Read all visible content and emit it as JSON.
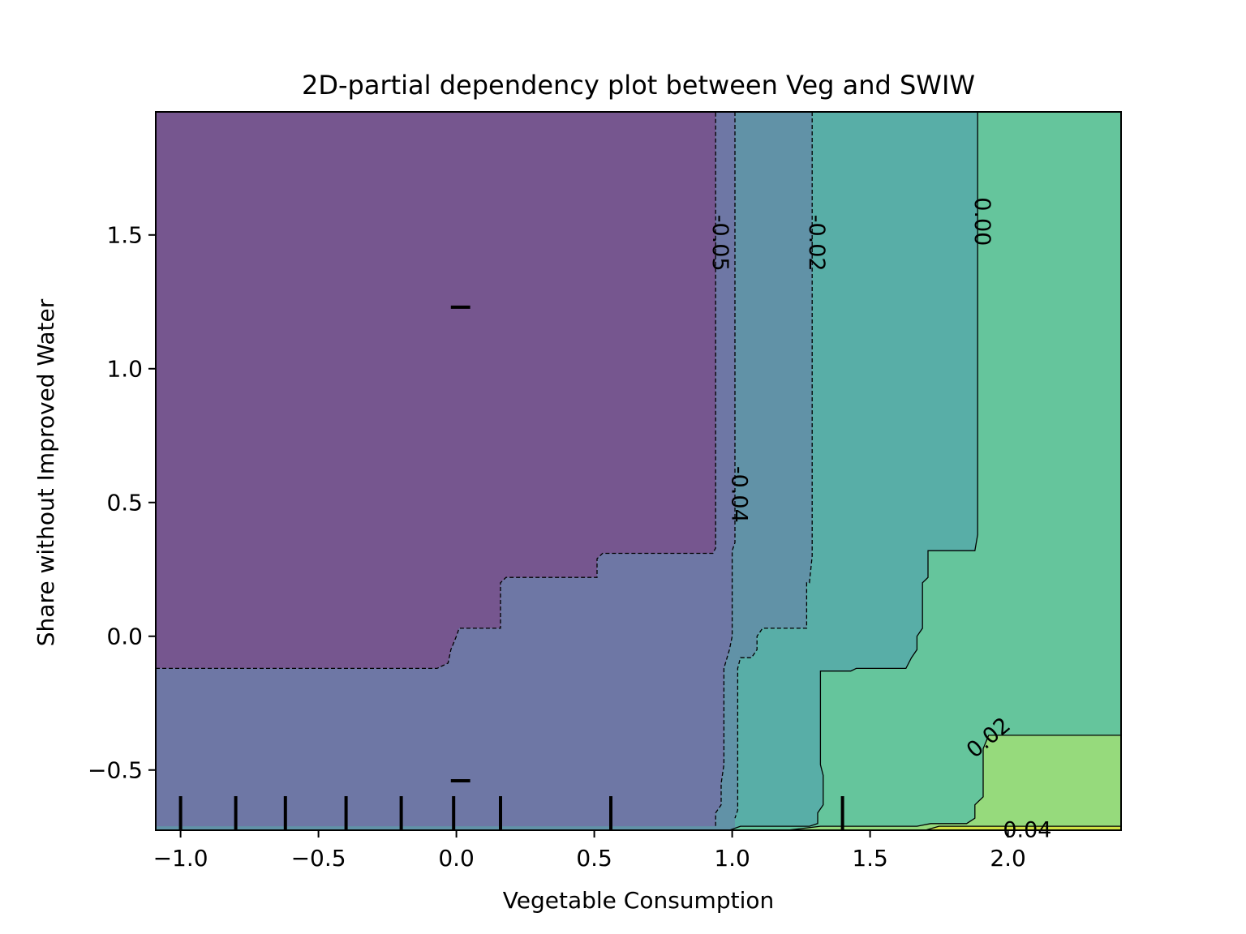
{
  "chart_data": {
    "type": "contour",
    "title": "2D-partial dependency plot between Veg and SWIW",
    "xlabel": "Vegetable Consumption",
    "ylabel": "Share without Improved Water",
    "xlim": [
      -1.09,
      2.41
    ],
    "ylim": [
      -0.725,
      1.96
    ],
    "xticks": [
      {
        "value": -1.0,
        "label": "−1.0"
      },
      {
        "value": -0.5,
        "label": "−0.5"
      },
      {
        "value": 0.0,
        "label": "0.0"
      },
      {
        "value": 0.5,
        "label": "0.5"
      },
      {
        "value": 1.0,
        "label": "1.0"
      },
      {
        "value": 1.5,
        "label": "1.5"
      },
      {
        "value": 2.0,
        "label": "2.0"
      }
    ],
    "yticks": [
      {
        "value": -0.5,
        "label": "−0.5"
      },
      {
        "value": 0.0,
        "label": "0.0"
      },
      {
        "value": 0.5,
        "label": "0.5"
      },
      {
        "value": 1.0,
        "label": "1.0"
      },
      {
        "value": 1.5,
        "label": "1.5"
      }
    ],
    "grid": false,
    "colors": {
      "band_lt_m005": "#76568f",
      "band_m005_m004": "#6e77a5",
      "band_m004_m002": "#6192a7",
      "band_m002_000": "#58aea7",
      "band_000_002": "#65c59c",
      "band_002_004": "#96da7c",
      "band_gt_004": "#d0e245"
    },
    "contour_levels": [
      {
        "label": "-0.05",
        "value": -0.05,
        "dashed": true,
        "points": [
          [
            -1.09,
            -0.12
          ],
          [
            -0.07,
            -0.12
          ],
          [
            -0.03,
            -0.1
          ],
          [
            -0.02,
            -0.05
          ],
          [
            0.0,
            0.0
          ],
          [
            0.01,
            0.03
          ],
          [
            0.16,
            0.03
          ],
          [
            0.16,
            0.2
          ],
          [
            0.18,
            0.22
          ],
          [
            0.51,
            0.22
          ],
          [
            0.51,
            0.29
          ],
          [
            0.53,
            0.31
          ],
          [
            0.93,
            0.31
          ],
          [
            0.94,
            0.33
          ],
          [
            0.94,
            1.96
          ]
        ]
      },
      {
        "label": "-0.04",
        "value": -0.04,
        "dashed": true,
        "points": [
          [
            1.01,
            1.96
          ],
          [
            1.01,
            0.35
          ],
          [
            1.0,
            0.32
          ],
          [
            1.0,
            0.0
          ],
          [
            0.99,
            -0.05
          ],
          [
            0.97,
            -0.12
          ],
          [
            0.97,
            -0.48
          ],
          [
            0.96,
            -0.55
          ],
          [
            0.96,
            -0.63
          ],
          [
            0.94,
            -0.66
          ],
          [
            0.94,
            -0.71
          ]
        ]
      },
      {
        "label": "-0.02",
        "value": -0.02,
        "dashed": true,
        "points": [
          [
            1.29,
            1.96
          ],
          [
            1.29,
            0.3
          ],
          [
            1.28,
            0.2
          ],
          [
            1.27,
            0.2
          ],
          [
            1.27,
            0.03
          ],
          [
            1.11,
            0.03
          ],
          [
            1.09,
            0.0
          ],
          [
            1.09,
            -0.05
          ],
          [
            1.07,
            -0.08
          ],
          [
            1.03,
            -0.08
          ],
          [
            1.02,
            -0.12
          ],
          [
            1.02,
            -0.65
          ],
          [
            1.01,
            -0.68
          ]
        ]
      },
      {
        "label": "0.00",
        "value": 0.0,
        "dashed": false,
        "points": [
          [
            1.89,
            1.96
          ],
          [
            1.89,
            0.38
          ],
          [
            1.88,
            0.32
          ],
          [
            1.71,
            0.32
          ],
          [
            1.71,
            0.22
          ],
          [
            1.69,
            0.2
          ],
          [
            1.69,
            0.03
          ],
          [
            1.67,
            0.0
          ],
          [
            1.67,
            -0.05
          ],
          [
            1.65,
            -0.08
          ],
          [
            1.63,
            -0.12
          ],
          [
            1.45,
            -0.12
          ],
          [
            1.43,
            -0.13
          ],
          [
            1.32,
            -0.13
          ],
          [
            1.32,
            -0.48
          ],
          [
            1.33,
            -0.52
          ],
          [
            1.33,
            -0.63
          ],
          [
            1.31,
            -0.66
          ],
          [
            1.31,
            -0.7
          ],
          [
            1.28,
            -0.71
          ],
          [
            1.03,
            -0.71
          ],
          [
            0.99,
            -0.725
          ]
        ]
      },
      {
        "label": "0.02",
        "value": 0.02,
        "dashed": false,
        "points": [
          [
            2.41,
            -0.37
          ],
          [
            1.93,
            -0.37
          ],
          [
            1.91,
            -0.42
          ],
          [
            1.91,
            -0.6
          ],
          [
            1.88,
            -0.63
          ],
          [
            1.88,
            -0.68
          ],
          [
            1.85,
            -0.7
          ],
          [
            1.72,
            -0.7
          ],
          [
            1.67,
            -0.71
          ],
          [
            1.32,
            -0.71
          ],
          [
            1.2,
            -0.725
          ]
        ]
      },
      {
        "label": "0.04",
        "value": 0.04,
        "dashed": false,
        "points": [
          [
            2.41,
            -0.71
          ],
          [
            1.75,
            -0.71
          ],
          [
            1.7,
            -0.725
          ]
        ]
      }
    ],
    "filled_regions": [
      {
        "band": "band_m004_m002",
        "points": [
          [
            0.94,
            1.96
          ],
          [
            2.41,
            1.96
          ],
          [
            2.41,
            -0.725
          ],
          [
            -1.09,
            -0.725
          ],
          [
            -1.09,
            -0.12
          ],
          [
            -0.07,
            -0.12
          ],
          [
            -0.03,
            -0.1
          ],
          [
            -0.02,
            -0.05
          ],
          [
            0.0,
            0.0
          ],
          [
            0.01,
            0.03
          ],
          [
            0.16,
            0.03
          ],
          [
            0.16,
            0.2
          ],
          [
            0.18,
            0.22
          ],
          [
            0.51,
            0.22
          ],
          [
            0.51,
            0.29
          ],
          [
            0.53,
            0.31
          ],
          [
            0.93,
            0.31
          ],
          [
            0.94,
            0.33
          ]
        ]
      },
      {
        "band": "band_m005_m004",
        "points": [
          [
            -1.09,
            -0.12
          ],
          [
            -0.07,
            -0.12
          ],
          [
            -0.03,
            -0.1
          ],
          [
            -0.02,
            -0.05
          ],
          [
            0.0,
            0.0
          ],
          [
            0.01,
            0.03
          ],
          [
            0.16,
            0.03
          ],
          [
            0.16,
            0.2
          ],
          [
            0.18,
            0.22
          ],
          [
            0.51,
            0.22
          ],
          [
            0.51,
            0.29
          ],
          [
            0.53,
            0.31
          ],
          [
            0.93,
            0.31
          ],
          [
            0.94,
            0.33
          ],
          [
            0.94,
            1.96
          ],
          [
            1.01,
            1.96
          ],
          [
            1.01,
            0.35
          ],
          [
            1.0,
            0.32
          ],
          [
            1.0,
            0.0
          ],
          [
            0.99,
            -0.05
          ],
          [
            0.97,
            -0.12
          ],
          [
            0.97,
            -0.48
          ],
          [
            0.96,
            -0.55
          ],
          [
            0.96,
            -0.63
          ],
          [
            0.94,
            -0.66
          ],
          [
            0.94,
            -0.71
          ],
          [
            -1.09,
            -0.71
          ]
        ]
      },
      {
        "band": "band_m002_000",
        "points": [
          [
            1.29,
            1.96
          ],
          [
            2.41,
            1.96
          ],
          [
            2.41,
            -0.725
          ],
          [
            1.01,
            -0.725
          ],
          [
            1.01,
            -0.68
          ],
          [
            1.02,
            -0.65
          ],
          [
            1.02,
            -0.12
          ],
          [
            1.03,
            -0.08
          ],
          [
            1.07,
            -0.08
          ],
          [
            1.09,
            -0.05
          ],
          [
            1.09,
            0.0
          ],
          [
            1.11,
            0.03
          ],
          [
            1.27,
            0.03
          ],
          [
            1.27,
            0.2
          ],
          [
            1.28,
            0.2
          ],
          [
            1.29,
            0.3
          ]
        ]
      },
      {
        "band": "band_000_002",
        "points": [
          [
            1.89,
            1.96
          ],
          [
            2.41,
            1.96
          ],
          [
            2.41,
            -0.725
          ],
          [
            0.99,
            -0.725
          ],
          [
            1.03,
            -0.71
          ],
          [
            1.28,
            -0.71
          ],
          [
            1.31,
            -0.7
          ],
          [
            1.31,
            -0.66
          ],
          [
            1.33,
            -0.63
          ],
          [
            1.33,
            -0.52
          ],
          [
            1.32,
            -0.48
          ],
          [
            1.32,
            -0.13
          ],
          [
            1.43,
            -0.13
          ],
          [
            1.45,
            -0.12
          ],
          [
            1.63,
            -0.12
          ],
          [
            1.65,
            -0.08
          ],
          [
            1.67,
            -0.05
          ],
          [
            1.67,
            0.0
          ],
          [
            1.69,
            0.03
          ],
          [
            1.69,
            0.2
          ],
          [
            1.71,
            0.22
          ],
          [
            1.71,
            0.32
          ],
          [
            1.88,
            0.32
          ],
          [
            1.89,
            0.38
          ]
        ]
      },
      {
        "band": "band_002_004",
        "points": [
          [
            2.41,
            -0.37
          ],
          [
            1.93,
            -0.37
          ],
          [
            1.91,
            -0.42
          ],
          [
            1.91,
            -0.6
          ],
          [
            1.88,
            -0.63
          ],
          [
            1.88,
            -0.68
          ],
          [
            1.85,
            -0.7
          ],
          [
            1.72,
            -0.7
          ],
          [
            1.67,
            -0.71
          ],
          [
            1.32,
            -0.71
          ],
          [
            1.2,
            -0.725
          ],
          [
            2.41,
            -0.725
          ]
        ]
      },
      {
        "band": "band_gt_004",
        "points": [
          [
            2.41,
            -0.71
          ],
          [
            1.75,
            -0.71
          ],
          [
            1.7,
            -0.725
          ],
          [
            2.41,
            -0.725
          ]
        ]
      }
    ],
    "contour_label_positions": [
      {
        "label": "-0.05",
        "x": 0.955,
        "y": 1.47,
        "rotation": 90
      },
      {
        "label": "-0.02",
        "x": 1.305,
        "y": 1.47,
        "rotation": 90
      },
      {
        "label": "0.00",
        "x": 1.905,
        "y": 1.55,
        "rotation": 90
      },
      {
        "label": "-0.04",
        "x": 1.025,
        "y": 0.53,
        "rotation": 90
      },
      {
        "label": "0.02",
        "x": 1.93,
        "y": -0.38,
        "rotation": -40
      },
      {
        "label": "0.04",
        "x": 2.07,
        "y": -0.725,
        "rotation": 0
      }
    ],
    "rug_x_deciles": [
      -1.0,
      -0.8,
      -0.62,
      -0.4,
      -0.2,
      -0.01,
      0.16,
      0.56,
      1.4
    ],
    "rug_y_deciles": [
      1.23,
      -0.54
    ]
  }
}
